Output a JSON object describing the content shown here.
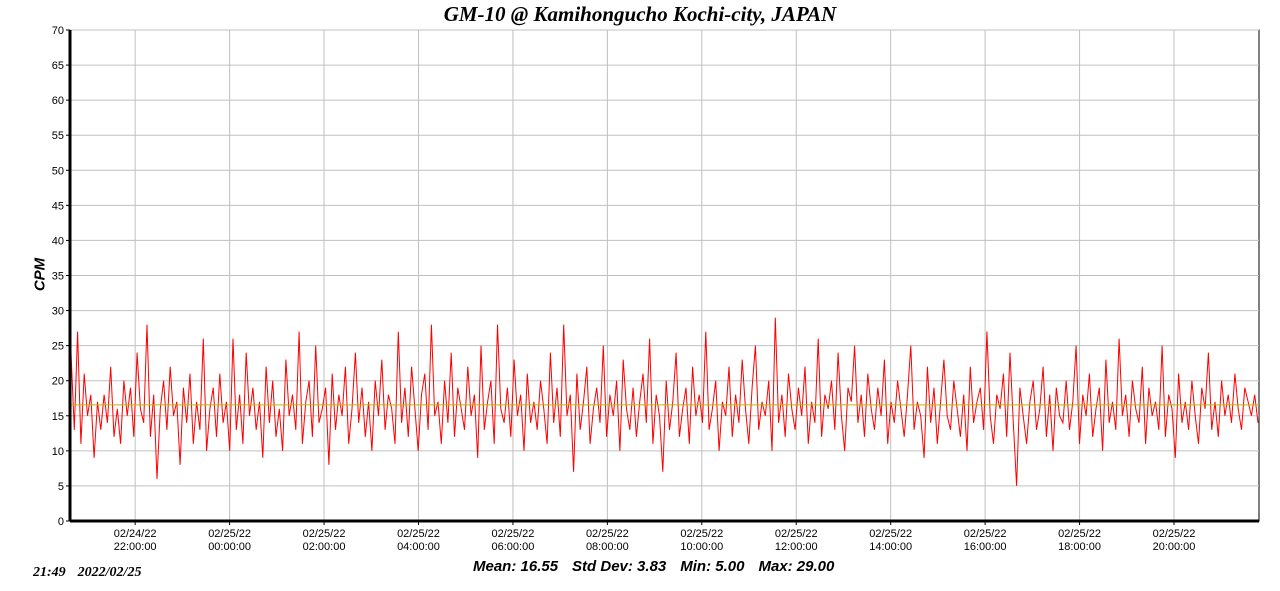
{
  "chart_data": {
    "type": "line",
    "title": "GM-10 @ Kamihongucho Kochi-city, JAPAN",
    "xlabel": "",
    "ylabel": "CPM",
    "ylim": [
      0,
      70
    ],
    "yticks": [
      0,
      5,
      10,
      15,
      20,
      25,
      30,
      35,
      40,
      45,
      50,
      55,
      60,
      65,
      70
    ],
    "x_unit": "hours since 02/24/22 00:00",
    "xlim": [
      20.62,
      45.8
    ],
    "xticks": [
      {
        "x": 22,
        "date": "02/24/22",
        "time": "22:00:00"
      },
      {
        "x": 24,
        "date": "02/25/22",
        "time": "00:00:00"
      },
      {
        "x": 26,
        "date": "02/25/22",
        "time": "02:00:00"
      },
      {
        "x": 28,
        "date": "02/25/22",
        "time": "04:00:00"
      },
      {
        "x": 30,
        "date": "02/25/22",
        "time": "06:00:00"
      },
      {
        "x": 32,
        "date": "02/25/22",
        "time": "08:00:00"
      },
      {
        "x": 34,
        "date": "02/25/22",
        "time": "10:00:00"
      },
      {
        "x": 36,
        "date": "02/25/22",
        "time": "12:00:00"
      },
      {
        "x": 38,
        "date": "02/25/22",
        "time": "14:00:00"
      },
      {
        "x": 40,
        "date": "02/25/22",
        "time": "16:00:00"
      },
      {
        "x": 42,
        "date": "02/25/22",
        "time": "18:00:00"
      },
      {
        "x": 44,
        "date": "02/25/22",
        "time": "20:00:00"
      }
    ],
    "grid": true,
    "mean_line": 16.55,
    "series": [
      {
        "name": "CPM",
        "color": "#ff0000",
        "values": [
          24,
          13,
          27,
          11,
          21,
          15,
          18,
          9,
          17,
          13,
          18,
          14,
          22,
          12,
          16,
          11,
          20,
          15,
          19,
          12,
          24,
          16,
          14,
          28,
          12,
          18,
          6,
          16,
          20,
          13,
          22,
          15,
          17,
          8,
          19,
          14,
          21,
          11,
          17,
          13,
          26,
          10,
          16,
          19,
          12,
          21,
          14,
          17,
          10,
          26,
          13,
          18,
          11,
          24,
          15,
          19,
          13,
          17,
          9,
          22,
          14,
          20,
          12,
          16,
          10,
          23,
          15,
          18,
          13,
          27,
          11,
          17,
          20,
          12,
          25,
          14,
          16,
          19,
          8,
          21,
          13,
          18,
          15,
          22,
          11,
          16,
          24,
          14,
          19,
          12,
          17,
          10,
          20,
          15,
          23,
          13,
          18,
          16,
          11,
          27,
          14,
          19,
          12,
          22,
          16,
          10,
          18,
          21,
          13,
          28,
          15,
          17,
          11,
          20,
          14,
          24,
          12,
          19,
          16,
          13,
          22,
          15,
          18,
          9,
          25,
          13,
          17,
          20,
          11,
          28,
          16,
          14,
          19,
          12,
          23,
          15,
          18,
          10,
          21,
          14,
          17,
          13,
          20,
          16,
          11,
          24,
          14,
          19,
          12,
          28,
          15,
          18,
          7,
          21,
          13,
          17,
          22,
          11,
          16,
          19,
          14,
          25,
          12,
          18,
          15,
          20,
          10,
          23,
          16,
          13,
          19,
          12,
          17,
          21,
          14,
          26,
          11,
          18,
          15,
          7,
          20,
          13,
          17,
          24,
          12,
          16,
          19,
          11,
          22,
          15,
          18,
          14,
          27,
          13,
          16,
          20,
          10,
          17,
          15,
          22,
          12,
          18,
          14,
          23,
          16,
          11,
          19,
          25,
          13,
          17,
          15,
          20,
          10,
          29,
          14,
          18,
          12,
          21,
          16,
          13,
          19,
          15,
          22,
          11,
          17,
          14,
          26,
          12,
          18,
          16,
          20,
          13,
          24,
          15,
          10,
          19,
          17,
          25,
          14,
          18,
          12,
          21,
          16,
          13,
          19,
          15,
          23,
          11,
          17,
          14,
          20,
          16,
          12,
          18,
          25,
          13,
          17,
          15,
          9,
          22,
          14,
          19,
          11,
          17,
          23,
          15,
          13,
          20,
          16,
          12,
          18,
          10,
          22,
          14,
          17,
          19,
          13,
          27,
          15,
          11,
          18,
          16,
          21,
          12,
          24,
          14,
          5,
          19,
          15,
          11,
          17,
          20,
          13,
          16,
          22,
          12,
          18,
          10,
          19,
          15,
          14,
          20,
          13,
          17,
          25,
          11,
          18,
          15,
          21,
          12,
          16,
          19,
          10,
          23,
          14,
          17,
          13,
          26,
          15,
          18,
          12,
          20,
          16,
          14,
          22,
          11,
          19,
          15,
          17,
          13,
          25,
          12,
          18,
          16,
          9,
          21,
          14,
          17,
          13,
          20,
          15,
          11,
          19,
          16,
          24,
          13,
          17,
          12,
          20,
          15,
          18,
          14,
          21,
          16,
          13,
          19,
          17,
          15,
          18,
          14
        ]
      }
    ],
    "colors": {
      "line": "#ff0000",
      "mean": "#b8b800",
      "grid": "#c0c0c0",
      "axis": "#000000"
    }
  },
  "stats": {
    "mean": "Mean: 16.55",
    "std": "Std Dev: 3.83",
    "min": "Min: 5.00",
    "max": "Max: 29.00"
  },
  "timestamp": {
    "time": "21:49",
    "date": "2022/02/25"
  }
}
